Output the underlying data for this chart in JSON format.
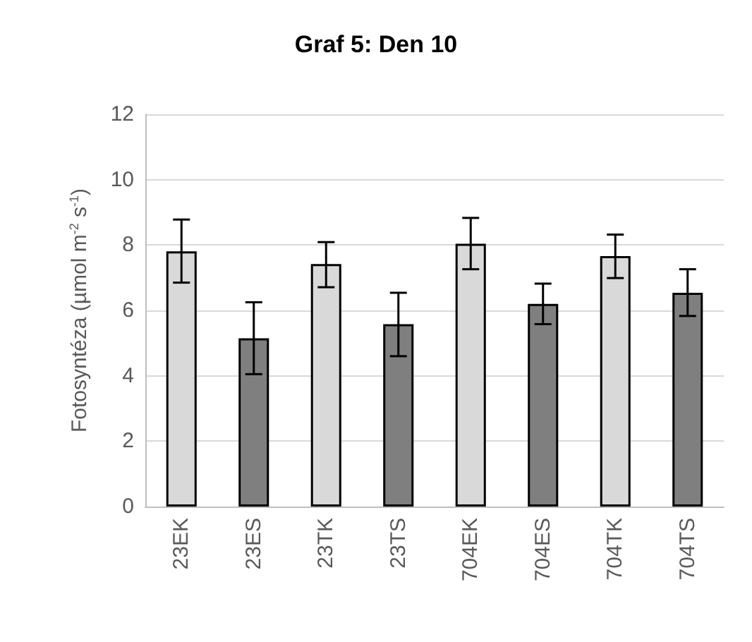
{
  "chart_data": {
    "type": "bar",
    "title": "Graf 5: Den 10",
    "ylabel": "Fotosyntéza (µmol m$^{-2}$ s$^{-1}$)",
    "categories": [
      "23EK",
      "23ES",
      "23TK",
      "23TS",
      "704EK",
      "704ES",
      "704TK",
      "704TS"
    ],
    "values": [
      7.81,
      5.15,
      7.42,
      5.58,
      8.04,
      6.2,
      7.66,
      6.54
    ],
    "colors": [
      "#d9d9d9",
      "#7f7f7f",
      "#d9d9d9",
      "#7f7f7f",
      "#d9d9d9",
      "#7f7f7f",
      "#d9d9d9",
      "#7f7f7f"
    ],
    "errors": [
      [
        6.85,
        8.78
      ],
      [
        4.05,
        6.25
      ],
      [
        6.71,
        8.09
      ],
      [
        4.6,
        6.54
      ],
      [
        7.26,
        8.83
      ],
      [
        5.58,
        6.82
      ],
      [
        6.99,
        8.32
      ],
      [
        5.83,
        7.26
      ]
    ],
    "ylim": [
      0,
      12
    ],
    "yticks": [
      0,
      2,
      4,
      6,
      8,
      10,
      12
    ],
    "grid": "y"
  }
}
